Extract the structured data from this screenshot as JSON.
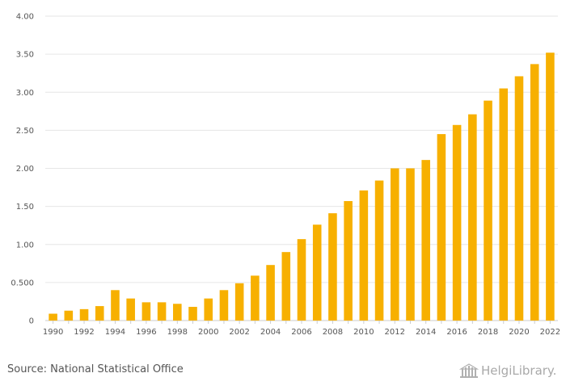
{
  "chart_data": {
    "type": "bar",
    "categories": [
      "1990",
      "1991",
      "1992",
      "1993",
      "1994",
      "1995",
      "1996",
      "1997",
      "1998",
      "1999",
      "2000",
      "2001",
      "2002",
      "2003",
      "2004",
      "2005",
      "2006",
      "2007",
      "2008",
      "2009",
      "2010",
      "2011",
      "2012",
      "2013",
      "2014",
      "2015",
      "2016",
      "2017",
      "2018",
      "2019",
      "2020",
      "2021",
      "2022"
    ],
    "values": [
      0.09,
      0.13,
      0.15,
      0.19,
      0.4,
      0.29,
      0.24,
      0.24,
      0.22,
      0.18,
      0.29,
      0.4,
      0.49,
      0.59,
      0.73,
      0.9,
      1.07,
      1.26,
      1.41,
      1.57,
      1.71,
      1.84,
      2.0,
      2.0,
      2.11,
      2.45,
      2.57,
      2.71,
      2.89,
      3.05,
      3.21,
      3.37,
      3.52
    ],
    "x_tick_labels": [
      "1990",
      "1992",
      "1994",
      "1996",
      "1998",
      "2000",
      "2002",
      "2004",
      "2006",
      "2008",
      "2010",
      "2012",
      "2014",
      "2016",
      "2018",
      "2020",
      "2022"
    ],
    "y_ticks": [
      0,
      0.5,
      1.0,
      1.5,
      2.0,
      2.5,
      3.0,
      3.5,
      4.0
    ],
    "y_tick_labels": [
      "0",
      "0.500",
      "1.00",
      "1.50",
      "2.00",
      "2.50",
      "3.00",
      "3.50",
      "4.00"
    ],
    "ylim": [
      0,
      4
    ],
    "grid": true,
    "title": "",
    "xlabel": "",
    "ylabel": "",
    "bar_color": "#f7b000"
  },
  "source": "Source: National Statistical Office",
  "logo": {
    "text": "HelgiLibrary.",
    "icon": "library-building-icon"
  }
}
